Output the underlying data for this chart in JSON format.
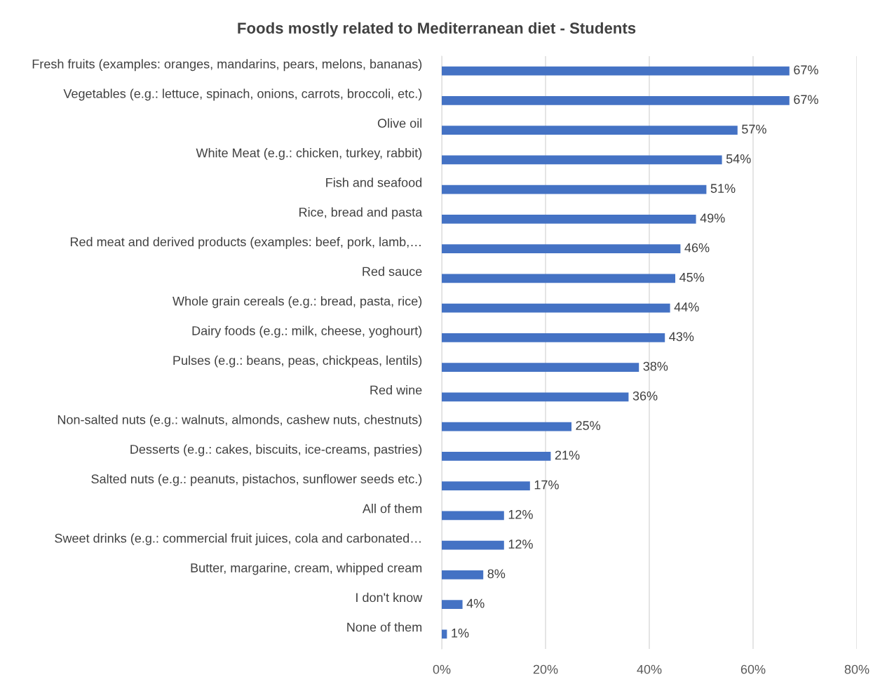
{
  "chart_data": {
    "type": "bar",
    "orientation": "horizontal",
    "title": "Foods mostly related to Mediterranean diet - Students",
    "categories": [
      "Fresh fruits (examples: oranges, mandarins, pears, melons, bananas)",
      "Vegetables (e.g.: lettuce, spinach, onions, carrots, broccoli, etc.)",
      "Olive oil",
      "White Meat (e.g.: chicken, turkey, rabbit)",
      "Fish and seafood",
      "Rice, bread and pasta",
      "Red meat and derived products (examples: beef, pork, lamb,…",
      "Red sauce",
      "Whole grain cereals (e.g.: bread, pasta, rice)",
      "Dairy foods (e.g.: milk, cheese, yoghourt)",
      "Pulses (e.g.: beans, peas, chickpeas, lentils)",
      "Red wine",
      "Non-salted nuts (e.g.: walnuts, almonds, cashew nuts, chestnuts)",
      "Desserts (e.g.: cakes, biscuits, ice-creams, pastries)",
      "Salted nuts (e.g.: peanuts, pistachos, sunflower seeds etc.)",
      "All of them",
      "Sweet drinks (e.g.: commercial fruit juices, cola and carbonated…",
      "Butter, margarine, cream, whipped cream",
      "I don't know",
      "None of them"
    ],
    "values": [
      67,
      67,
      57,
      54,
      51,
      49,
      46,
      45,
      44,
      43,
      38,
      36,
      25,
      21,
      17,
      12,
      12,
      8,
      4,
      1
    ],
    "value_labels": [
      "67%",
      "67%",
      "57%",
      "54%",
      "51%",
      "49%",
      "46%",
      "45%",
      "44%",
      "43%",
      "38%",
      "36%",
      "25%",
      "21%",
      "17%",
      "12%",
      "12%",
      "8%",
      "4%",
      "1%"
    ],
    "color": "#4472c4",
    "xlim": [
      0,
      80
    ],
    "xticks": [
      {
        "value": 0,
        "label": "0%"
      },
      {
        "value": 20,
        "label": "20%"
      },
      {
        "value": 40,
        "label": "40%"
      },
      {
        "value": 60,
        "label": "60%"
      },
      {
        "value": 80,
        "label": "80%"
      }
    ],
    "grid": "x"
  }
}
